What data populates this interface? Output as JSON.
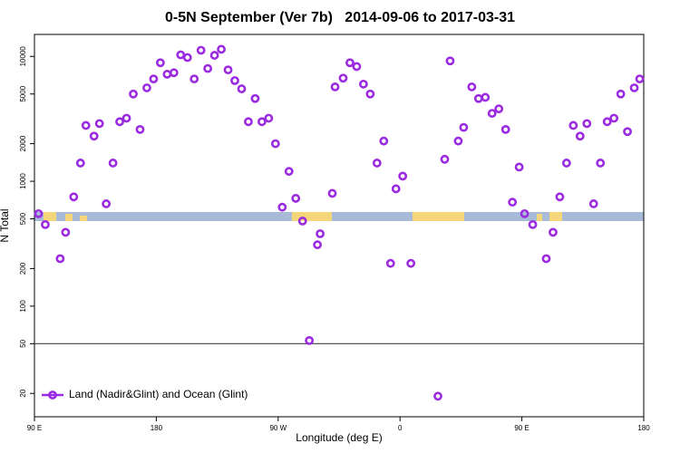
{
  "chart_data": {
    "type": "scatter",
    "title": "0-5N September (Ver 7b)   2014-09-06 to 2017-03-31",
    "x_label": "Longitude (deg E)",
    "y_label": "N Total",
    "log_y": true,
    "xlim": [
      90,
      540
    ],
    "xticks": [
      {
        "value": 90,
        "label": "90 E"
      },
      {
        "value": 180,
        "label": "180"
      },
      {
        "value": 270,
        "label": "90 W"
      },
      {
        "value": 360,
        "label": "0"
      },
      {
        "value": 450,
        "label": "90 E"
      },
      {
        "value": 540,
        "label": "180"
      }
    ],
    "ylim": [
      13,
      15000
    ],
    "yticks": [
      20,
      50,
      100,
      200,
      500,
      1000,
      2000,
      5000,
      10000
    ],
    "reference_line": 50,
    "legend": "lower left",
    "series": [
      {
        "name": "Land (Nadir&Glint) and Ocean (Glint)",
        "color": "#9b2be0",
        "x": [
          93,
          98,
          109,
          113,
          119,
          124,
          128,
          134,
          138,
          143,
          148,
          153,
          158,
          163,
          168,
          173,
          178,
          183,
          188,
          193,
          198,
          203,
          208,
          213,
          218,
          223,
          228,
          233,
          238,
          243,
          248,
          253,
          258,
          263,
          268,
          273,
          278,
          283,
          288,
          293,
          299,
          301,
          310,
          312,
          318,
          323,
          328,
          333,
          338,
          343,
          348,
          353,
          357,
          362,
          368,
          388,
          393,
          397,
          403,
          407,
          413,
          418,
          423,
          428,
          433,
          438,
          443,
          448,
          452,
          458,
          468,
          473,
          478,
          483,
          488,
          493,
          498,
          503,
          508,
          513,
          518,
          523,
          528,
          533,
          537
        ],
        "values": [
          550,
          450,
          240,
          390,
          750,
          1400,
          2800,
          2300,
          2900,
          660,
          1400,
          3000,
          3200,
          5000,
          2600,
          5600,
          6600,
          8900,
          7200,
          7400,
          10300,
          9800,
          6600,
          11200,
          8000,
          10200,
          11400,
          7800,
          6400,
          5500,
          3000,
          4600,
          3000,
          3200,
          2000,
          620,
          1200,
          730,
          480,
          53,
          310,
          380,
          800,
          5700,
          6700,
          8900,
          8300,
          6000,
          5000,
          1400,
          2100,
          220,
          870,
          1100,
          220,
          19,
          1500,
          9200,
          2100,
          2700,
          5700,
          4600,
          4700,
          3500,
          3800,
          2600,
          680,
          1300,
          550,
          450,
          240,
          390,
          750,
          1400,
          2800,
          2300,
          2900,
          660,
          1400,
          3000,
          3200,
          5000,
          2500,
          5600,
          6600
        ]
      }
    ]
  }
}
